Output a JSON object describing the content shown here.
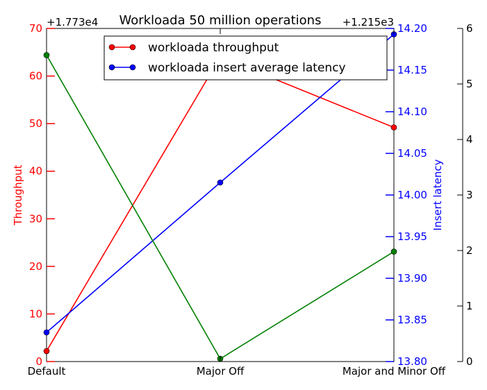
{
  "chart_data": {
    "type": "line",
    "title": "Workloada 50 million operations",
    "categories": [
      "Default",
      "Major Off",
      "Major and Minor Off"
    ],
    "left_axis": {
      "label": "Throughput",
      "offset_label": "+1.773e4",
      "ylim": [
        0,
        70
      ],
      "ticks": [
        0,
        10,
        20,
        30,
        40,
        50,
        60,
        70
      ],
      "color": "#ff0000"
    },
    "right_axis_1": {
      "label": "Insert latency",
      "offset_label": "+1.215e3",
      "ylim": [
        13.8,
        14.2
      ],
      "ticks": [
        "13.80",
        "13.85",
        "13.90",
        "13.95",
        "14.00",
        "14.05",
        "14.10",
        "14.15",
        "14.20"
      ],
      "color": "#0000ff"
    },
    "right_axis_2": {
      "label": "",
      "ylim": [
        0,
        6
      ],
      "ticks": [
        0,
        1,
        2,
        3,
        4,
        5,
        6
      ],
      "color": "#000000"
    },
    "series": [
      {
        "name": "workloada throughput",
        "axis": "left",
        "color": "#ff0000",
        "values": [
          2.2,
          64.0,
          49.2
        ]
      },
      {
        "name": "workloada insert average latency",
        "axis": "right1",
        "color": "#0000ff",
        "values": [
          13.835,
          14.015,
          14.193
        ]
      },
      {
        "name": "",
        "axis": "right2",
        "color": "#008000",
        "values": [
          5.52,
          0.05,
          1.98
        ]
      }
    ],
    "legend_placement": "top-center",
    "grid": false
  }
}
